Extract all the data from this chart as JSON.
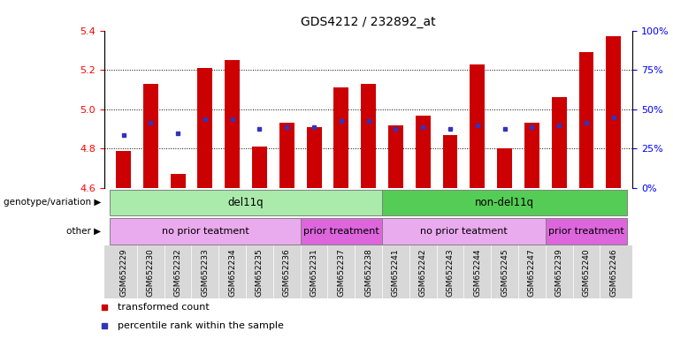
{
  "title": "GDS4212 / 232892_at",
  "samples": [
    "GSM652229",
    "GSM652230",
    "GSM652232",
    "GSM652233",
    "GSM652234",
    "GSM652235",
    "GSM652236",
    "GSM652231",
    "GSM652237",
    "GSM652238",
    "GSM652241",
    "GSM652242",
    "GSM652243",
    "GSM652244",
    "GSM652245",
    "GSM652247",
    "GSM652239",
    "GSM652240",
    "GSM652246"
  ],
  "bar_values": [
    4.79,
    5.13,
    4.67,
    5.21,
    5.25,
    4.81,
    4.93,
    4.91,
    5.11,
    5.13,
    4.92,
    4.97,
    4.87,
    5.23,
    4.8,
    4.93,
    5.06,
    5.29,
    5.37
  ],
  "blue_values": [
    4.87,
    4.93,
    4.88,
    4.95,
    4.95,
    4.9,
    4.91,
    4.91,
    4.94,
    4.94,
    4.9,
    4.91,
    4.9,
    4.92,
    4.9,
    4.91,
    4.92,
    4.93,
    4.96
  ],
  "ylim": [
    4.6,
    5.4
  ],
  "yticks": [
    4.6,
    4.8,
    5.0,
    5.2,
    5.4
  ],
  "y2ticks": [
    0,
    25,
    50,
    75,
    100
  ],
  "y2ticklabels": [
    "0%",
    "25%",
    "50%",
    "75%",
    "100%"
  ],
  "bar_color": "#cc0000",
  "blue_color": "#3333bb",
  "bar_width": 0.55,
  "genotype_groups": [
    {
      "label": "del11q",
      "start": 0,
      "end": 9,
      "color": "#aaeaaa"
    },
    {
      "label": "non-del11q",
      "start": 10,
      "end": 18,
      "color": "#55cc55"
    }
  ],
  "other_groups": [
    {
      "label": "no prior teatment",
      "start": 0,
      "end": 6,
      "color": "#eaaaee"
    },
    {
      "label": "prior treatment",
      "start": 7,
      "end": 9,
      "color": "#dd66dd"
    },
    {
      "label": "no prior teatment",
      "start": 10,
      "end": 15,
      "color": "#eaaaee"
    },
    {
      "label": "prior treatment",
      "start": 16,
      "end": 18,
      "color": "#dd66dd"
    }
  ],
  "legend_items": [
    {
      "label": "transformed count",
      "color": "#cc0000"
    },
    {
      "label": "percentile rank within the sample",
      "color": "#3333bb"
    }
  ],
  "xtick_bg": "#d8d8d8"
}
